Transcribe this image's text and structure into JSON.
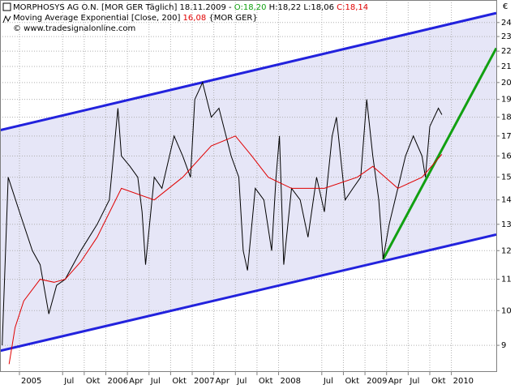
{
  "chart_data": {
    "type": "line",
    "header": {
      "info": "[MOR GER  Täglich] 18.11.2009 -",
      "open": "O:18,20",
      "high": "H:18,22",
      "low": "L:18,06",
      "close": "C:18,14",
      "indicator_value": "16,08",
      "indicator_info": "{MOR GER}",
      "copyright": "© www.tradesignalonline.com"
    },
    "y_label": "€",
    "log_scale": true,
    "grid": true,
    "xlim": [
      2004.775,
      2010.52
    ],
    "ylim": [
      8.32,
      25.7
    ],
    "yticks": [
      9,
      10,
      11,
      12,
      13,
      14,
      15,
      16,
      17,
      18,
      19,
      20,
      21,
      22,
      23,
      24
    ],
    "xticks": [
      2005,
      {
        "value": 2005.5,
        "label": "Jul"
      },
      {
        "value": 2005.75,
        "label": "Okt"
      },
      2006,
      {
        "value": 2006.25,
        "label": "Apr"
      },
      {
        "value": 2006.5,
        "label": "Jul"
      },
      {
        "value": 2006.75,
        "label": "Okt"
      },
      2007,
      {
        "value": 2007.25,
        "label": "Apr"
      },
      {
        "value": 2007.5,
        "label": "Jul"
      },
      {
        "value": 2007.75,
        "label": "Okt"
      },
      2008,
      {
        "value": 2008.5,
        "label": "Jul"
      },
      {
        "value": 2008.75,
        "label": "Okt"
      },
      2009,
      {
        "value": 2009.25,
        "label": "Apr"
      },
      {
        "value": 2009.5,
        "label": "Jul"
      },
      {
        "value": 2009.75,
        "label": "Okt"
      },
      2010
    ],
    "series": [
      {
        "name": "MORPHOSYS AG O.N.",
        "color": "#000000",
        "x": [
          2004.8,
          2004.87,
          2005.0,
          2005.15,
          2005.24,
          2005.34,
          2005.43,
          2005.53,
          2005.71,
          2005.9,
          2006.04,
          2006.14,
          2006.18,
          2006.28,
          2006.37,
          2006.42,
          2006.46,
          2006.56,
          2006.65,
          2006.79,
          2006.89,
          2006.98,
          2007.03,
          2007.12,
          2007.22,
          2007.31,
          2007.45,
          2007.54,
          2007.59,
          2007.64,
          2007.73,
          2007.83,
          2007.92,
          2007.97,
          2008.01,
          2008.06,
          2008.15,
          2008.25,
          2008.34,
          2008.44,
          2008.53,
          2008.62,
          2008.67,
          2008.77,
          2008.86,
          2008.95,
          2009.02,
          2009.09,
          2009.16,
          2009.21,
          2009.28,
          2009.38,
          2009.47,
          2009.56,
          2009.66,
          2009.7,
          2009.75,
          2009.85,
          2009.89
        ],
        "values": [
          9.0,
          15.0,
          13.5,
          12.0,
          11.5,
          9.9,
          10.8,
          11.0,
          12.0,
          13.0,
          14.0,
          18.5,
          16.0,
          15.5,
          15.0,
          13.5,
          11.5,
          15.0,
          14.5,
          17.0,
          16.0,
          15.0,
          19.0,
          20.0,
          18.0,
          18.5,
          16.0,
          15.0,
          12.0,
          11.3,
          14.5,
          14.0,
          12.0,
          15.0,
          17.0,
          11.5,
          14.5,
          14.0,
          12.5,
          15.0,
          13.5,
          17.0,
          18.0,
          14.0,
          14.5,
          15.0,
          19.0,
          16.0,
          14.0,
          11.7,
          13.0,
          14.5,
          16.0,
          17.0,
          16.0,
          15.0,
          17.5,
          18.5,
          18.14
        ]
      },
      {
        "name": "Moving Average Exponential [Close, 200]",
        "color": "#e00000",
        "x": [
          2004.88,
          2004.95,
          2005.05,
          2005.24,
          2005.4,
          2005.53,
          2005.71,
          2005.9,
          2006.18,
          2006.56,
          2006.89,
          2007.22,
          2007.5,
          2007.69,
          2007.88,
          2008.15,
          2008.53,
          2008.91,
          2009.09,
          2009.38,
          2009.66,
          2009.89
        ],
        "values": [
          8.5,
          9.5,
          10.3,
          11.0,
          10.9,
          11.0,
          11.6,
          12.5,
          14.5,
          14.0,
          15.0,
          16.5,
          17.0,
          16.0,
          15.0,
          14.5,
          14.5,
          15.0,
          15.5,
          14.5,
          15.0,
          16.08
        ]
      }
    ],
    "trendlines": [
      {
        "color": "#2222dd",
        "x": [
          2004.775,
          2010.52
        ],
        "values": [
          17.3,
          24.7
        ]
      },
      {
        "color": "#2222dd",
        "x": [
          2004.775,
          2010.52
        ],
        "values": [
          8.85,
          12.6
        ]
      },
      {
        "color": "#11a011",
        "x": [
          2009.21,
          2010.52
        ],
        "values": [
          11.69,
          22.2
        ]
      }
    ],
    "channel_fill": "#e6e6f7"
  }
}
